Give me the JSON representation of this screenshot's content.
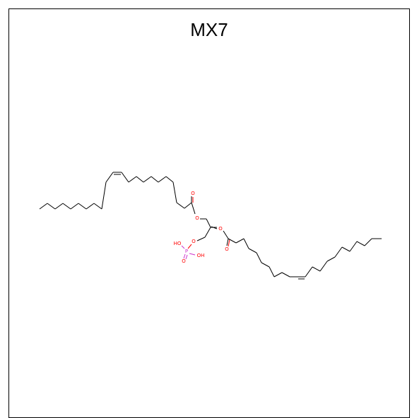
{
  "title": "MX7",
  "atoms": {
    "ester_o1": "O",
    "carbonyl_o1": "O",
    "ester_o2": "O",
    "carbonyl_o2": "O",
    "phosphate_o": "O",
    "phosphorus": "P",
    "p_oh_left": "HO",
    "p_oh_right": "OH",
    "p_double_o": "O"
  },
  "colors": {
    "oxygen": "#ff0000",
    "phosphorus": "#cc33cc",
    "bond": "#000000"
  }
}
